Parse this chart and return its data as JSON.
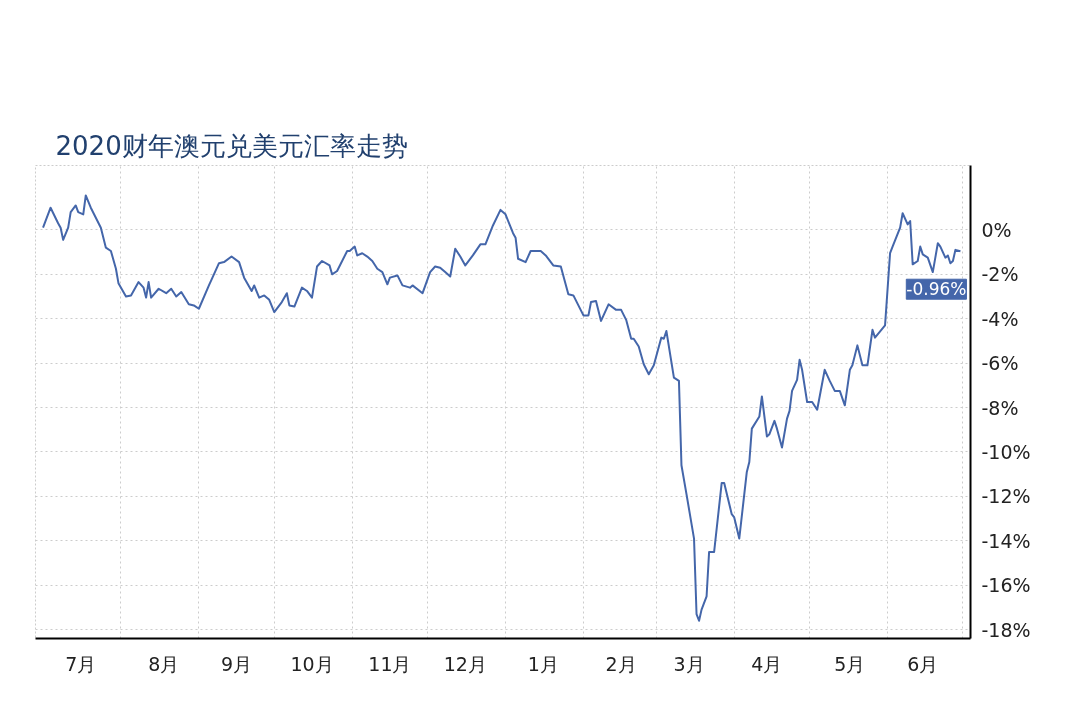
{
  "chart_data": {
    "type": "line",
    "title": "2020财年澳元兑美元汇率走势",
    "x": [
      "2019-07-01",
      "2019-07-04",
      "2019-07-07",
      "2019-07-08",
      "2019-07-09",
      "2019-07-11",
      "2019-07-12",
      "2019-07-14",
      "2019-07-15",
      "2019-07-17",
      "2019-07-18",
      "2019-07-20",
      "2019-07-24",
      "2019-07-26",
      "2019-07-28",
      "2019-07-30",
      "2019-07-31",
      "2019-08-03",
      "2019-08-05",
      "2019-08-08",
      "2019-08-10",
      "2019-08-11",
      "2019-08-12",
      "2019-08-13",
      "2019-08-16",
      "2019-08-19",
      "2019-08-21",
      "2019-08-23",
      "2019-08-25",
      "2019-08-28",
      "2019-08-30",
      "2019-09-01",
      "2019-09-05",
      "2019-09-06",
      "2019-09-09",
      "2019-09-11",
      "2019-09-14",
      "2019-09-17",
      "2019-09-19",
      "2019-09-22",
      "2019-09-23",
      "2019-09-25",
      "2019-09-27",
      "2019-09-29",
      "2019-10-01",
      "2019-10-04",
      "2019-10-06",
      "2019-10-07",
      "2019-10-09",
      "2019-10-12",
      "2019-10-14",
      "2019-10-16",
      "2019-10-18",
      "2019-10-20",
      "2019-10-23",
      "2019-10-24",
      "2019-10-26",
      "2019-10-30",
      "2019-10-31",
      "2019-11-02",
      "2019-11-03",
      "2019-11-05",
      "2019-11-07",
      "2019-11-09",
      "2019-11-11",
      "2019-11-13",
      "2019-11-15",
      "2019-11-16",
      "2019-11-19",
      "2019-11-21",
      "2019-11-24",
      "2019-11-25",
      "2019-11-29",
      "2019-12-02",
      "2019-12-04",
      "2019-12-06",
      "2019-12-08",
      "2019-12-10",
      "2019-12-12",
      "2019-12-14",
      "2019-12-16",
      "2019-12-19",
      "2019-12-22",
      "2019-12-24",
      "2019-12-27",
      "2019-12-30",
      "2020-01-01",
      "2020-01-04",
      "2020-01-05",
      "2020-01-06",
      "2020-01-09",
      "2020-01-11",
      "2020-01-15",
      "2020-01-17",
      "2020-01-20",
      "2020-01-23",
      "2020-01-26",
      "2020-01-28",
      "2020-02-01",
      "2020-02-03",
      "2020-02-04",
      "2020-02-06",
      "2020-02-08",
      "2020-02-11",
      "2020-02-14",
      "2020-02-16",
      "2020-02-18",
      "2020-02-20",
      "2020-02-21",
      "2020-02-23",
      "2020-02-25",
      "2020-02-27",
      "2020-02-29",
      "2020-03-03",
      "2020-03-04",
      "2020-03-05",
      "2020-03-08",
      "2020-03-10",
      "2020-03-11",
      "2020-03-13",
      "2020-03-16",
      "2020-03-17",
      "2020-03-18",
      "2020-03-19",
      "2020-03-21",
      "2020-03-22",
      "2020-03-24",
      "2020-03-27",
      "2020-03-28",
      "2020-03-31",
      "2020-04-01",
      "2020-04-03",
      "2020-04-06",
      "2020-04-07",
      "2020-04-08",
      "2020-04-11",
      "2020-04-12",
      "2020-04-14",
      "2020-04-15",
      "2020-04-17",
      "2020-04-18",
      "2020-04-20",
      "2020-04-22",
      "2020-04-23",
      "2020-04-24",
      "2020-04-26",
      "2020-04-27",
      "2020-04-28",
      "2020-04-30",
      "2020-05-02",
      "2020-05-04",
      "2020-05-07",
      "2020-05-09",
      "2020-05-11",
      "2020-05-13",
      "2020-05-15",
      "2020-05-17",
      "2020-05-18",
      "2020-05-20",
      "2020-05-22",
      "2020-05-24",
      "2020-05-26",
      "2020-05-27",
      "2020-05-31",
      "2020-06-02",
      "2020-06-03",
      "2020-06-06",
      "2020-06-07",
      "2020-06-09",
      "2020-06-10",
      "2020-06-11",
      "2020-06-13",
      "2020-06-14",
      "2020-06-15",
      "2020-06-17",
      "2020-06-19",
      "2020-06-21",
      "2020-06-22",
      "2020-06-24",
      "2020-06-25",
      "2020-06-26",
      "2020-06-27",
      "2020-06-28",
      "2020-06-30"
    ],
    "series": [
      {
        "color": "#4466aa",
        "values": [
          0.1,
          1.0,
          0.3,
          0.1,
          -0.45,
          0.1,
          0.8,
          1.1,
          0.8,
          0.7,
          1.55,
          1.0,
          0.1,
          -0.8,
          -0.95,
          -1.75,
          -2.4,
          -3.0,
          -2.95,
          -2.35,
          -2.6,
          -3.05,
          -2.35,
          -3.05,
          -2.65,
          -2.85,
          -2.65,
          -3.0,
          -2.8,
          -3.35,
          -3.4,
          -3.55,
          -2.5,
          -2.25,
          -1.5,
          -1.45,
          -1.2,
          -1.45,
          -2.15,
          -2.75,
          -2.5,
          -3.05,
          -2.95,
          -3.15,
          -3.7,
          -3.25,
          -2.85,
          -3.4,
          -3.45,
          -2.6,
          -2.75,
          -3.05,
          -1.65,
          -1.4,
          -1.6,
          -2.0,
          -1.85,
          -0.95,
          -0.95,
          -0.75,
          -1.15,
          -1.05,
          -1.2,
          -1.4,
          -1.75,
          -1.9,
          -2.45,
          -2.15,
          -2.05,
          -2.5,
          -2.6,
          -2.5,
          -2.85,
          -1.9,
          -1.65,
          -1.7,
          -1.9,
          -2.1,
          -0.85,
          -1.2,
          -1.6,
          -1.15,
          -0.65,
          -0.65,
          0.2,
          0.9,
          0.7,
          -0.15,
          -0.35,
          -1.3,
          -1.45,
          -0.95,
          -0.95,
          -1.15,
          -1.6,
          -1.65,
          -2.9,
          -2.95,
          -3.85,
          -3.85,
          -3.25,
          -3.2,
          -4.1,
          -3.35,
          -3.6,
          -3.6,
          -4.05,
          -4.9,
          -4.9,
          -5.25,
          -6.05,
          -6.5,
          -6.1,
          -4.85,
          -4.9,
          -4.55,
          -6.65,
          -6.8,
          -10.6,
          -11.9,
          -13.9,
          -17.3,
          -17.6,
          -17.1,
          -16.5,
          -14.5,
          -14.5,
          -11.4,
          -11.4,
          -12.8,
          -12.95,
          -13.9,
          -10.9,
          -10.45,
          -8.95,
          -8.4,
          -7.5,
          -9.3,
          -9.2,
          -8.6,
          -8.95,
          -9.8,
          -8.5,
          -8.15,
          -7.25,
          -6.75,
          -5.85,
          -6.3,
          -7.75,
          -7.75,
          -8.1,
          -6.3,
          -6.8,
          -7.25,
          -7.25,
          -7.9,
          -6.3,
          -6.1,
          -5.2,
          -6.1,
          -6.1,
          -4.5,
          -4.85,
          -4.3,
          -1.05,
          -0.75,
          0.1,
          0.75,
          0.25,
          0.4,
          -1.55,
          -1.4,
          -0.75,
          -1.1,
          -1.25,
          -1.9,
          -0.6,
          -0.75,
          -1.25,
          -1.15,
          -1.5,
          -1.4,
          -0.9,
          -0.96
        ]
      }
    ],
    "xlim": [
      "2019-06-28",
      "2020-07-04"
    ],
    "xticks": [
      {
        "value": "2019-07-16",
        "label": "7月"
      },
      {
        "value": "2019-08-18",
        "label": "8月"
      },
      {
        "value": "2019-09-16",
        "label": "9月"
      },
      {
        "value": "2019-10-16",
        "label": "10月"
      },
      {
        "value": "2019-11-16",
        "label": "11月"
      },
      {
        "value": "2019-12-16",
        "label": "12月"
      },
      {
        "value": "2020-01-16",
        "label": "1月"
      },
      {
        "value": "2020-02-16",
        "label": "2月"
      },
      {
        "value": "2020-03-14",
        "label": "3月"
      },
      {
        "value": "2020-04-14",
        "label": "4月"
      },
      {
        "value": "2020-05-17",
        "label": "5月"
      },
      {
        "value": "2020-06-15",
        "label": "6月"
      },
      {
        "value": "2019-08-01",
        "label": null
      },
      {
        "value": "2019-09-01",
        "label": null
      },
      {
        "value": "2019-10-01",
        "label": null
      },
      {
        "value": "2019-11-01",
        "label": null
      },
      {
        "value": "2019-12-01",
        "label": null
      },
      {
        "value": "2020-01-01",
        "label": null
      },
      {
        "value": "2020-02-01",
        "label": null
      },
      {
        "value": "2020-03-01",
        "label": null
      },
      {
        "value": "2020-04-01",
        "label": null
      },
      {
        "value": "2020-05-01",
        "label": null
      },
      {
        "value": "2020-06-01",
        "label": null
      },
      {
        "value": "2020-07-01",
        "label": null
      }
    ],
    "ylim": [
      -18.4,
      2.9
    ],
    "yticks": [
      {
        "value": 0,
        "label": "0%"
      },
      {
        "value": -2,
        "label": "-2%"
      },
      {
        "value": -4,
        "label": "-4%"
      },
      {
        "value": -6,
        "label": "-6%"
      },
      {
        "value": -8,
        "label": "-8%"
      },
      {
        "value": -10,
        "label": "-10%"
      },
      {
        "value": -12,
        "label": "-12%"
      },
      {
        "value": -14,
        "label": "-14%"
      },
      {
        "value": -16,
        "label": "-16%"
      },
      {
        "value": -18,
        "label": "-18%"
      }
    ],
    "grid": true,
    "annotations": [
      {
        "text": "-0.96%",
        "x": "2020-06-30",
        "y": -0.96
      }
    ]
  }
}
